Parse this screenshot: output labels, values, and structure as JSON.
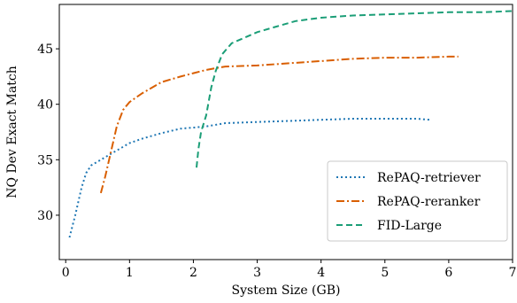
{
  "chart_data": {
    "type": "line",
    "title": "",
    "xlabel": "System Size (GB)",
    "ylabel": "NQ Dev Exact Match",
    "xlim": [
      -0.1,
      7.0
    ],
    "ylim": [
      26.0,
      49.0
    ],
    "xticks": [
      0,
      1,
      2,
      3,
      4,
      5,
      6,
      7
    ],
    "yticks": [
      30,
      35,
      40,
      45
    ],
    "grid": false,
    "legend_position": "bottom-right",
    "series": [
      {
        "name": "RePAQ-retriever",
        "color": "#1f77b4",
        "style": "dotted",
        "x": [
          0.06,
          0.15,
          0.25,
          0.32,
          0.4,
          0.55,
          0.7,
          0.85,
          1.0,
          1.2,
          1.5,
          1.8,
          2.0,
          2.2,
          2.5,
          3.0,
          3.5,
          4.0,
          4.5,
          5.0,
          5.5,
          5.7
        ],
        "y": [
          28.0,
          30.0,
          32.5,
          33.8,
          34.5,
          35.0,
          35.5,
          36.0,
          36.5,
          36.9,
          37.4,
          37.8,
          37.9,
          38.0,
          38.3,
          38.4,
          38.5,
          38.6,
          38.7,
          38.7,
          38.7,
          38.6
        ]
      },
      {
        "name": "RePAQ-reranker",
        "color": "#d95f02",
        "style": "dashdot",
        "x": [
          0.55,
          0.62,
          0.7,
          0.8,
          0.9,
          1.0,
          1.2,
          1.5,
          1.8,
          2.0,
          2.2,
          2.5,
          3.0,
          3.5,
          4.0,
          4.5,
          5.0,
          5.5,
          6.0,
          6.15
        ],
        "y": [
          32.0,
          33.5,
          35.5,
          38.0,
          39.5,
          40.2,
          41.0,
          42.0,
          42.5,
          42.8,
          43.1,
          43.4,
          43.5,
          43.7,
          43.9,
          44.1,
          44.2,
          44.2,
          44.3,
          44.3
        ]
      },
      {
        "name": "FID-Large",
        "color": "#1b9e77",
        "style": "dashed",
        "x": [
          2.05,
          2.08,
          2.12,
          2.2,
          2.28,
          2.35,
          2.45,
          2.6,
          2.8,
          3.0,
          3.3,
          3.6,
          4.0,
          4.5,
          5.0,
          5.5,
          6.0,
          6.5,
          7.0
        ],
        "y": [
          34.3,
          36.0,
          37.5,
          39.0,
          41.5,
          43.0,
          44.5,
          45.5,
          46.0,
          46.5,
          47.0,
          47.5,
          47.8,
          48.0,
          48.1,
          48.2,
          48.3,
          48.3,
          48.4
        ]
      }
    ]
  }
}
